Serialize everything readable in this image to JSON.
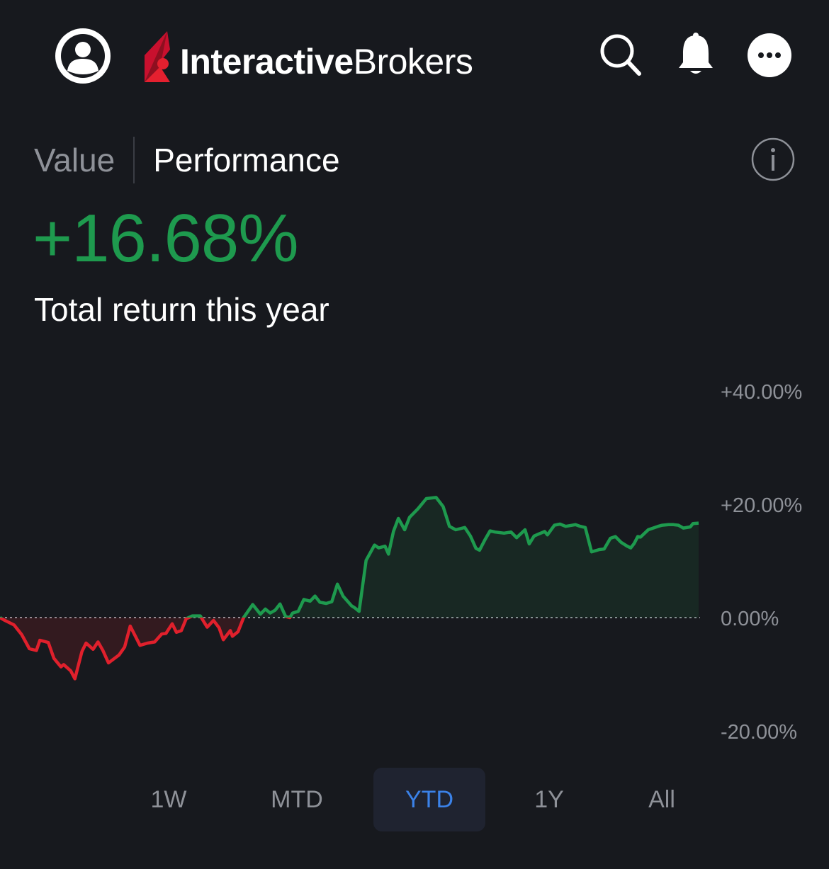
{
  "header": {
    "brand_bold": "Interactive",
    "brand_light": "Brokers",
    "icons": [
      "user-avatar-icon",
      "search-icon",
      "bell-icon",
      "more-icon"
    ]
  },
  "toggle": {
    "value_label": "Value",
    "performance_label": "Performance",
    "selected": "Performance"
  },
  "summary": {
    "return_value": "+16.68%",
    "return_label": "Total return this year"
  },
  "periods": [
    {
      "label": "1W",
      "active": false
    },
    {
      "label": "MTD",
      "active": false
    },
    {
      "label": "YTD",
      "active": true
    },
    {
      "label": "1Y",
      "active": false
    },
    {
      "label": "All",
      "active": false
    }
  ],
  "colors": {
    "background": "#17191e",
    "positive": "#1e9a4e",
    "negative": "#e0202c",
    "active_period": "#3b82e8"
  },
  "chart_data": {
    "type": "line",
    "y_ticks": [
      "+40.00%",
      "+20.00%",
      "0.00%",
      "-20.00%"
    ],
    "ylim": [
      -20,
      40
    ],
    "baseline": 0,
    "x": [
      0,
      0.007,
      0.02,
      0.031,
      0.042,
      0.052,
      0.057,
      0.069,
      0.077,
      0.087,
      0.091,
      0.101,
      0.107,
      0.117,
      0.123,
      0.133,
      0.14,
      0.147,
      0.155,
      0.17,
      0.178,
      0.186,
      0.2,
      0.211,
      0.221,
      0.231,
      0.237,
      0.246,
      0.252,
      0.259,
      0.266,
      0.275,
      0.286,
      0.296,
      0.305,
      0.313,
      0.319,
      0.329,
      0.332,
      0.34,
      0.348,
      0.361,
      0.372,
      0.379,
      0.386,
      0.393,
      0.4,
      0.408,
      0.414,
      0.418,
      0.426,
      0.434,
      0.443,
      0.45,
      0.457,
      0.466,
      0.474,
      0.482,
      0.49,
      0.502,
      0.507,
      0.513,
      0.523,
      0.535,
      0.541,
      0.55,
      0.555,
      0.562,
      0.569,
      0.578,
      0.585,
      0.597,
      0.609,
      0.623,
      0.633,
      0.642,
      0.651,
      0.664,
      0.672,
      0.68,
      0.685,
      0.693,
      0.7,
      0.707,
      0.72,
      0.73,
      0.738,
      0.75,
      0.756,
      0.763,
      0.778,
      0.782,
      0.792,
      0.8,
      0.808,
      0.822,
      0.829,
      0.836,
      0.845,
      0.856,
      0.863,
      0.872,
      0.879,
      0.887,
      0.896,
      0.901,
      0.906,
      0.911,
      0.915,
      0.926,
      0.94,
      0.946,
      0.955,
      0.962,
      0.969,
      0.976,
      0.986,
      0.99,
      0.998
    ],
    "values": [
      0,
      -0.5,
      -1.3,
      -3,
      -5.5,
      -5.8,
      -4,
      -4.4,
      -7.2,
      -8.7,
      -8.3,
      -9.4,
      -10.8,
      -6,
      -4.5,
      -5.6,
      -4.3,
      -5.8,
      -8,
      -6.6,
      -5.2,
      -1.5,
      -4.9,
      -4.5,
      -4.3,
      -2.9,
      -2.8,
      -1.1,
      -2.6,
      -2.3,
      -0.2,
      0.3,
      0.3,
      -1.7,
      -0.5,
      -1.8,
      -3.9,
      -2.3,
      -3.3,
      -2.5,
      0,
      2.3,
      0.6,
      1.5,
      0.8,
      1.3,
      2.4,
      0.2,
      0,
      0.8,
      1.1,
      3.2,
      2.9,
      3.8,
      2.7,
      2.5,
      2.8,
      5.9,
      3.8,
      2.1,
      1.7,
      1.1,
      10.1,
      12.8,
      12.3,
      12.6,
      11.2,
      15.2,
      17.5,
      15.5,
      17.7,
      19.2,
      21,
      21.2,
      19.6,
      16.1,
      15.5,
      15.9,
      14.4,
      12.2,
      11.9,
      13.8,
      15.3,
      15.1,
      14.9,
      15.1,
      14.1,
      15.5,
      13,
      14.4,
      15.2,
      14.6,
      16.3,
      16.5,
      16.1,
      16.4,
      16.1,
      15.9,
      11.6,
      12,
      12.1,
      14,
      14.3,
      13.3,
      12.6,
      12.3,
      13.1,
      14.3,
      14.2,
      15.5,
      16.1,
      16.3,
      16.4,
      16.4,
      16.3,
      15.8,
      16,
      16.6,
      16.68
    ]
  }
}
